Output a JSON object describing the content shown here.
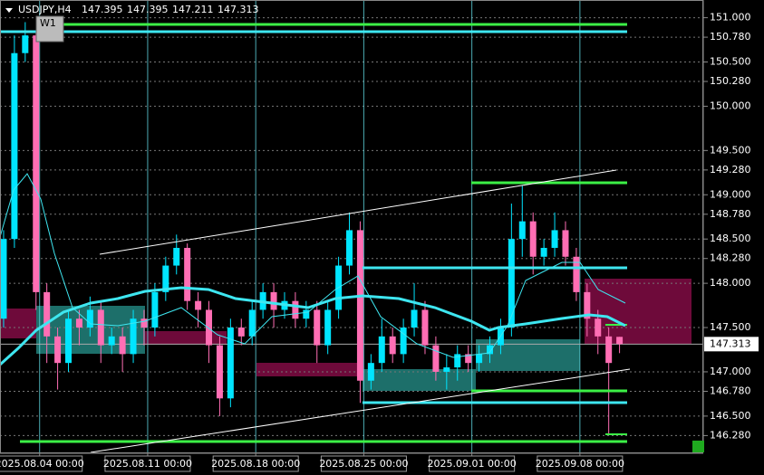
{
  "chart_data": {
    "type": "candlestick",
    "symbol": "USDJPY,H4",
    "ohlc": [
      147.395,
      147.395,
      147.211,
      147.313
    ],
    "button": "W1",
    "current_price": 147.313,
    "up_color": "#00e5ff",
    "down_color": "#ff6eb4",
    "grid": true,
    "x": [
      0,
      3,
      6,
      9,
      12,
      15,
      18,
      21,
      24,
      27,
      30,
      33,
      36,
      39,
      42,
      45,
      48,
      51,
      54,
      57,
      60,
      63,
      66,
      69,
      72,
      75,
      78,
      81,
      84,
      87,
      90,
      93,
      96,
      99,
      102,
      105,
      108,
      111,
      114,
      117,
      120,
      123,
      126,
      129,
      132,
      135,
      138,
      141,
      144,
      147,
      150,
      153,
      156,
      159,
      162,
      165,
      168,
      171
    ],
    "open": [
      147.6,
      148.5,
      150.6,
      150.8,
      147.9,
      147.4,
      147.1,
      147.6,
      147.5,
      147.7,
      147.3,
      147.4,
      147.2,
      147.6,
      147.5,
      147.9,
      148.2,
      148.4,
      147.8,
      147.7,
      147.3,
      146.7,
      147.5,
      147.4,
      147.7,
      147.9,
      147.7,
      147.8,
      147.6,
      147.7,
      147.3,
      147.7,
      148.2,
      148.6,
      146.9,
      147.1,
      147.4,
      147.2,
      147.5,
      147.7,
      147.3,
      147.0,
      147.05,
      147.2,
      147.1,
      147.2,
      147.3,
      147.5,
      148.5,
      148.7,
      148.3,
      148.4,
      148.6,
      148.3,
      147.9,
      147.6,
      147.4,
      147.395
    ],
    "high": [
      148.6,
      150.8,
      150.95,
      150.85,
      148.0,
      147.5,
      147.7,
      147.7,
      147.85,
      147.8,
      147.5,
      147.5,
      147.7,
      147.7,
      148.0,
      148.3,
      148.55,
      148.45,
      147.9,
      147.8,
      147.4,
      147.6,
      147.6,
      147.8,
      148.0,
      148.0,
      147.9,
      147.9,
      147.8,
      147.8,
      147.8,
      148.3,
      148.8,
      148.7,
      147.2,
      147.6,
      147.5,
      147.6,
      148.0,
      147.8,
      147.4,
      147.2,
      147.3,
      147.3,
      147.3,
      147.4,
      147.6,
      148.9,
      149.1,
      148.8,
      148.5,
      148.8,
      148.7,
      148.4,
      148.0,
      147.7,
      147.5,
      147.395
    ],
    "low": [
      147.5,
      148.4,
      150.5,
      147.7,
      147.1,
      146.8,
      147.0,
      147.3,
      147.4,
      147.1,
      147.2,
      147.0,
      147.1,
      147.3,
      147.4,
      147.8,
      148.1,
      147.7,
      147.5,
      147.1,
      146.5,
      146.6,
      147.3,
      147.3,
      147.6,
      147.5,
      147.6,
      147.5,
      147.5,
      147.1,
      147.2,
      147.6,
      148.1,
      146.65,
      146.8,
      147.0,
      147.1,
      147.1,
      147.4,
      147.2,
      146.9,
      146.8,
      146.9,
      147.0,
      147.0,
      147.1,
      147.2,
      147.4,
      148.3,
      148.1,
      148.2,
      148.3,
      148.2,
      147.8,
      147.4,
      147.2,
      146.3,
      147.211
    ],
    "close": [
      148.5,
      150.6,
      150.8,
      147.9,
      147.4,
      147.1,
      147.6,
      147.5,
      147.7,
      147.3,
      147.4,
      147.2,
      147.6,
      147.5,
      147.9,
      148.2,
      148.4,
      147.8,
      147.7,
      147.3,
      146.7,
      147.5,
      147.4,
      147.7,
      147.9,
      147.7,
      147.8,
      147.6,
      147.7,
      147.3,
      147.7,
      148.2,
      148.6,
      146.9,
      147.1,
      147.4,
      147.2,
      147.5,
      147.7,
      147.3,
      147.0,
      147.05,
      147.2,
      147.1,
      147.2,
      147.3,
      147.5,
      148.5,
      148.7,
      148.3,
      148.4,
      148.6,
      148.3,
      147.9,
      147.6,
      147.4,
      147.1,
      147.313
    ],
    "xlim": [
      -1,
      194
    ],
    "ylim": [
      146.09,
      151.2
    ],
    "xticks": [
      {
        "value": 10,
        "label": "2025.08.04 00:00"
      },
      {
        "value": 40,
        "label": "2025.08.11 00:00"
      },
      {
        "value": 70,
        "label": "2025.08.18 00:00"
      },
      {
        "value": 100,
        "label": "2025.08.25 00:00"
      },
      {
        "value": 130,
        "label": "2025.09.01 00:00"
      },
      {
        "value": 160,
        "label": "2025.09.08 00:00"
      }
    ],
    "yticks": [
      {
        "value": 151,
        "label": "151.000"
      },
      {
        "value": 150.78,
        "label": "150.780"
      },
      {
        "value": 150.5,
        "label": "150.500"
      },
      {
        "value": 150.28,
        "label": "150.280"
      },
      {
        "value": 150,
        "label": "150.000"
      },
      {
        "value": 149.5,
        "label": "149.500"
      },
      {
        "value": 149.28,
        "label": "149.280"
      },
      {
        "value": 149,
        "label": "149.000"
      },
      {
        "value": 148.78,
        "label": "148.780"
      },
      {
        "value": 148.5,
        "label": "148.500"
      },
      {
        "value": 148.28,
        "label": "148.280"
      },
      {
        "value": 148,
        "label": "148.000"
      },
      {
        "value": 147.5,
        "label": "147.500"
      },
      {
        "value": 147,
        "label": "147.000"
      },
      {
        "value": 146.78,
        "label": "146.780"
      },
      {
        "value": 146.5,
        "label": "146.500"
      },
      {
        "value": 146.28,
        "label": "146.280"
      }
    ]
  }
}
